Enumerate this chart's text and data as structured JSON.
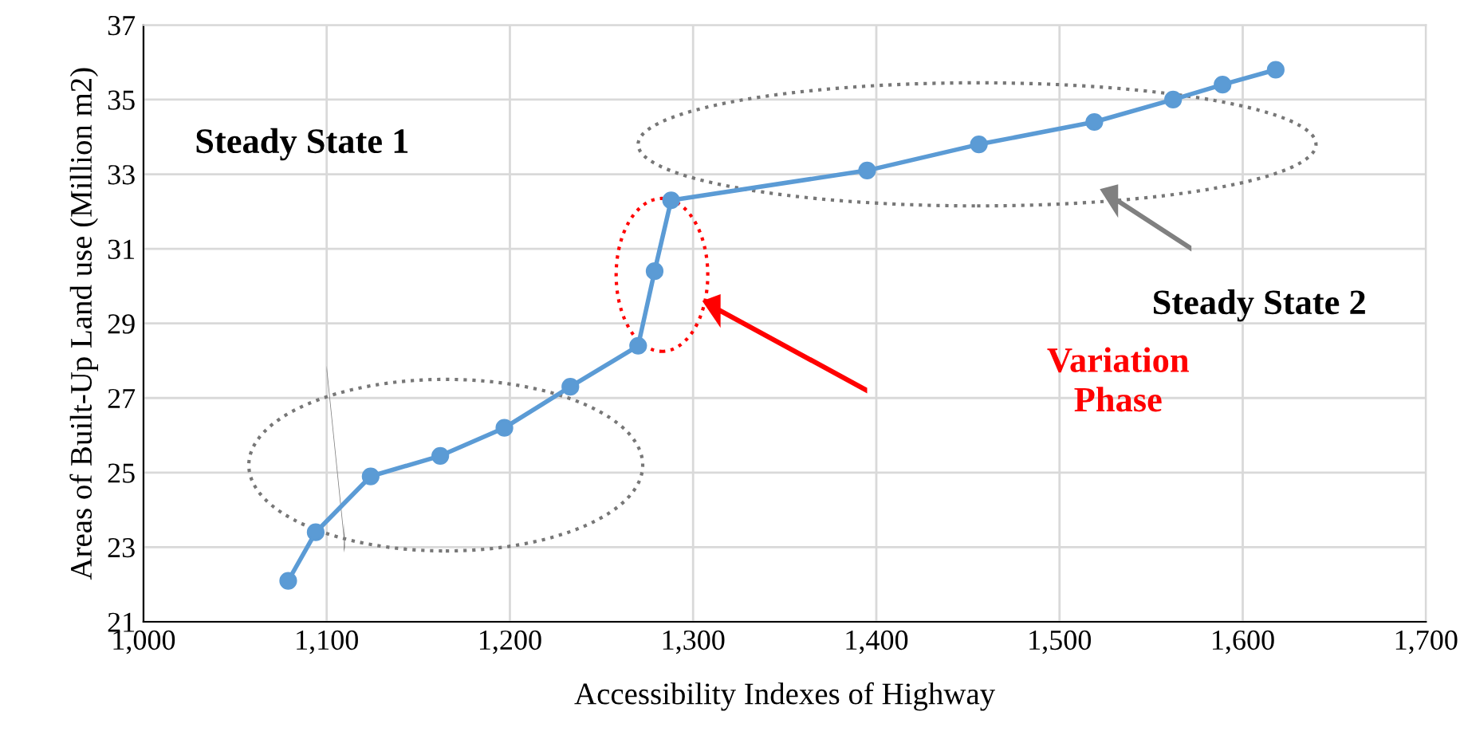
{
  "chart_data": {
    "type": "line",
    "xlabel": "Accessibility Indexes of Highway",
    "ylabel": "Areas of Built-Up Land use (Million m2)",
    "series": [
      {
        "color": "#5b9bd5",
        "x": [
          1079,
          1094,
          1124,
          1162,
          1197,
          1233,
          1270,
          1279,
          1288,
          1395,
          1456,
          1519,
          1562,
          1589,
          1618
        ],
        "values": [
          22.1,
          23.4,
          24.9,
          25.45,
          26.2,
          27.3,
          28.4,
          30.4,
          32.3,
          33.1,
          33.8,
          34.4,
          35.0,
          35.4,
          35.8
        ]
      }
    ],
    "xlim": [
      1000,
      1700
    ],
    "xticks": [
      {
        "value": 1000,
        "label": "1,000"
      },
      {
        "value": 1100,
        "label": "1,100"
      },
      {
        "value": 1200,
        "label": "1,200"
      },
      {
        "value": 1300,
        "label": "1,300"
      },
      {
        "value": 1400,
        "label": "1,400"
      },
      {
        "value": 1500,
        "label": "1,500"
      },
      {
        "value": 1600,
        "label": "1,600"
      },
      {
        "value": 1700,
        "label": "1,700"
      }
    ],
    "ylim": [
      21,
      37
    ],
    "yticks": [
      21,
      23,
      25,
      27,
      29,
      31,
      33,
      35,
      37
    ],
    "grid": true,
    "marker": "circle",
    "line_style": "solid",
    "annotations": [
      "Steady State 1",
      "Steady State 2",
      "Variation Phase"
    ]
  }
}
